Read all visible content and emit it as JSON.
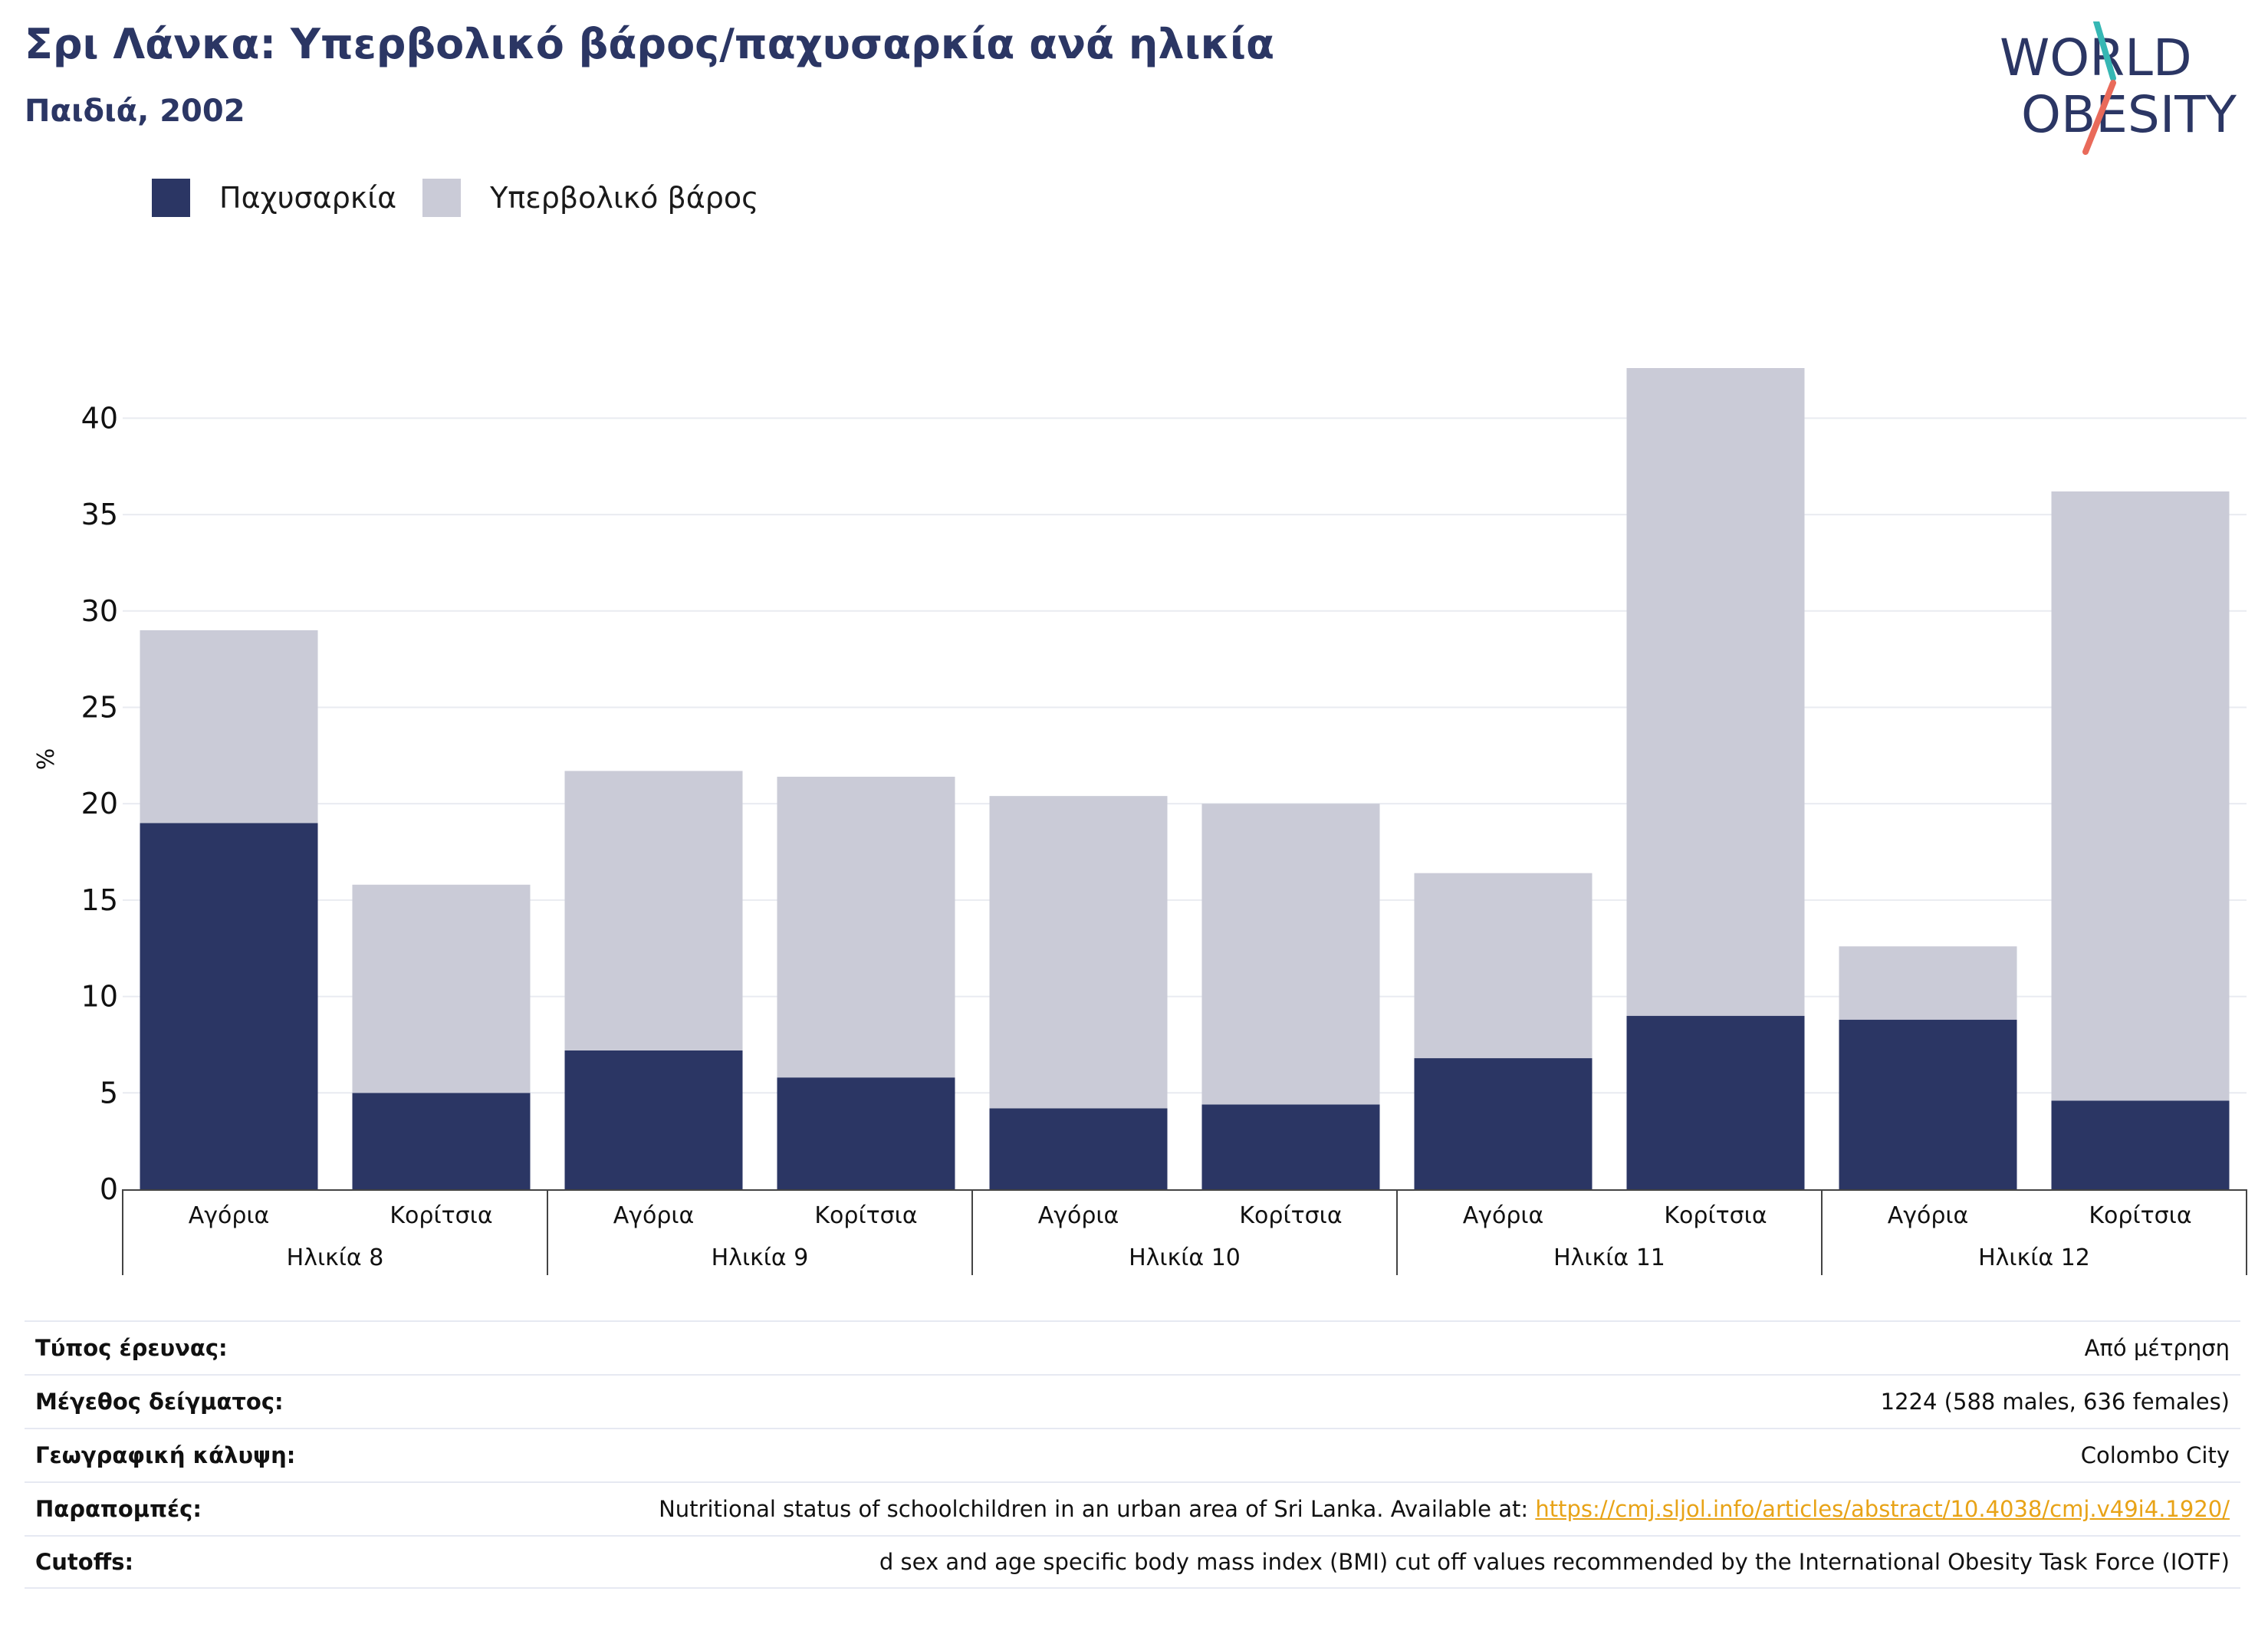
{
  "header": {
    "title": "Σρι Λάνκα: Υπερβολικό βάρος/παχυσαρκία ανά ηλικία",
    "subtitle": "Παιδιά, 2002"
  },
  "logo": {
    "line1": "WORLD",
    "line2": "OBESITY"
  },
  "colors": {
    "obesity": "#2b3664",
    "overweight": "#cacbd7",
    "link": "#e8a317",
    "title": "#2b3664"
  },
  "chart_data": {
    "type": "bar",
    "stacked": true,
    "ylabel": "%",
    "ylim": [
      0,
      42.6
    ],
    "yticks": [
      0,
      5,
      10,
      15,
      20,
      25,
      30,
      35,
      40
    ],
    "grid": true,
    "legend_position": "top-left",
    "groups": [
      {
        "label": "Ηλικία 8",
        "categories": [
          "Αγόρια",
          "Κορίτσια"
        ]
      },
      {
        "label": "Ηλικία 9",
        "categories": [
          "Αγόρια",
          "Κορίτσια"
        ]
      },
      {
        "label": "Ηλικία 10",
        "categories": [
          "Αγόρια",
          "Κορίτσια"
        ]
      },
      {
        "label": "Ηλικία 11",
        "categories": [
          "Αγόρια",
          "Κορίτσια"
        ]
      },
      {
        "label": "Ηλικία 12",
        "categories": [
          "Αγόρια",
          "Κορίτσια"
        ]
      }
    ],
    "series": [
      {
        "name": "Παχυσαρκία",
        "color": "#2b3664",
        "values": [
          19.0,
          5.0,
          7.2,
          5.8,
          4.2,
          4.4,
          6.8,
          9.0,
          8.8,
          4.6
        ]
      },
      {
        "name": "Υπερβολικό βάρος",
        "color": "#cacbd7",
        "values": [
          10.0,
          10.8,
          14.5,
          15.6,
          16.2,
          15.6,
          9.6,
          33.6,
          3.8,
          31.6
        ]
      }
    ]
  },
  "info": [
    {
      "key": "Τύπος έρευνας:",
      "value": "Από μέτρηση"
    },
    {
      "key": "Μέγεθος δείγματος:",
      "value": "1224 (588 males, 636 females)"
    },
    {
      "key": "Γεωγραφική κάλυψη:",
      "value": "Colombo City"
    },
    {
      "key": "Παραπομπές:",
      "value": "Nutritional status of schoolchildren in an urban area of Sri Lanka. Available at: ",
      "link": "https://cmj.sljol.info/articles/abstract/10.4038/cmj.v49i4.1920/"
    },
    {
      "key": "Cutoffs:",
      "value": "d sex and age specific body mass index (BMI) cut off values recommended by the International Obesity Task Force (IOTF)"
    }
  ]
}
